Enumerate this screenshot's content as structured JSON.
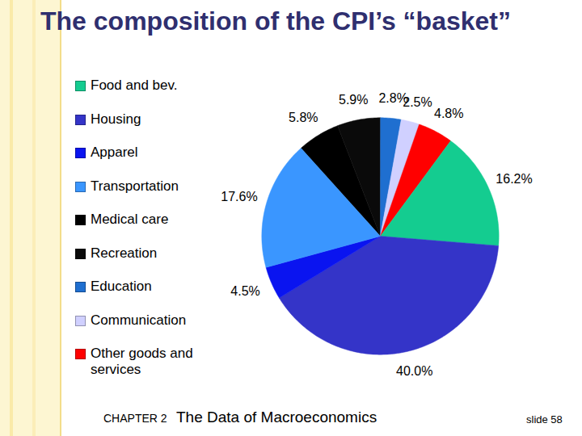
{
  "chart_data": {
    "type": "pie",
    "title": "The composition of the CPI’s “basket”",
    "categories": [
      "Medical care",
      "Recreation",
      "Education",
      "Communication",
      "Other goods and services",
      "Food and bev.",
      "Housing",
      "Apparel",
      "Transportation"
    ],
    "values": [
      5.8,
      5.9,
      2.8,
      2.5,
      4.8,
      16.2,
      40.0,
      4.5,
      17.6
    ],
    "value_labels": [
      "5.8%",
      "5.9%",
      "2.8%",
      "2.5%",
      "4.8%",
      "16.2%",
      "40.0%",
      "4.5%",
      "17.6%"
    ],
    "colors": [
      "#000000",
      "#0a0a0a",
      "#1f6fd0",
      "#d0d0ff",
      "#ff0000",
      "#14cc90",
      "#3434c8",
      "#0a14f0",
      "#3a96ff"
    ],
    "legend_order": [
      "Food and bev.",
      "Housing",
      "Apparel",
      "Transportation",
      "Medical care",
      "Recreation",
      "Education",
      "Communication",
      "Other goods and services"
    ],
    "data_labels": true,
    "legend": "left",
    "footer": {
      "chapter": "CHAPTER 2",
      "subject": "The Data of Macroeconomics",
      "slide": "slide 58"
    }
  }
}
